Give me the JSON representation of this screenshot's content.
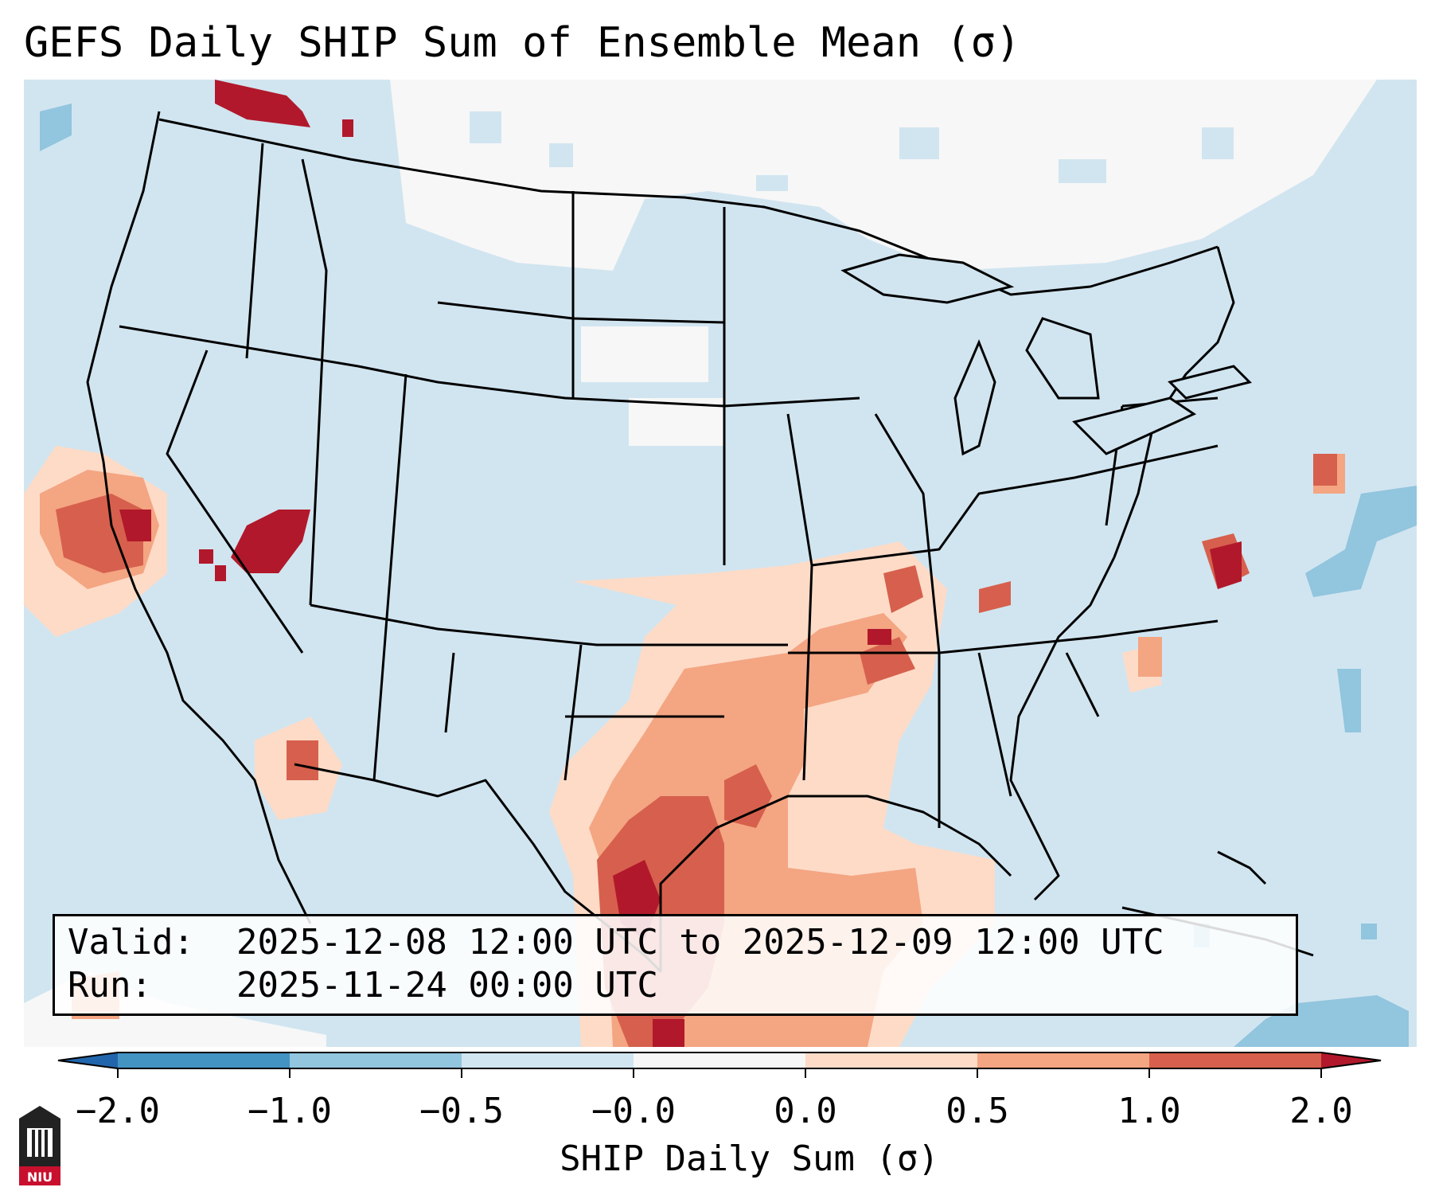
{
  "title": "GEFS Daily SHIP Sum of Ensemble Mean (σ)",
  "info": {
    "valid_label": "Valid:",
    "valid_value": "2025-12-08 12:00 UTC to 2025-12-09 12:00 UTC",
    "run_label": "Run:",
    "run_value": "2025-11-24 00:00 UTC"
  },
  "colorbar": {
    "label": "SHIP Daily Sum (σ)",
    "ticks": [
      "−2.0",
      "−1.0",
      "−0.5",
      "−0.0",
      "0.0",
      "0.5",
      "1.0",
      "2.0"
    ],
    "colors": [
      "#4393c3",
      "#92c5de",
      "#d1e5f0",
      "#f7f7f7",
      "#fddbc7",
      "#f4a582",
      "#d6604d",
      "#b2182b"
    ],
    "extend": "both"
  },
  "logo": {
    "text": "NIU"
  },
  "colors": {
    "below_low": "#2166ac",
    "above_high": "#b2182b",
    "land_background": "#d1e5f0",
    "state_lines": "#000000"
  }
}
